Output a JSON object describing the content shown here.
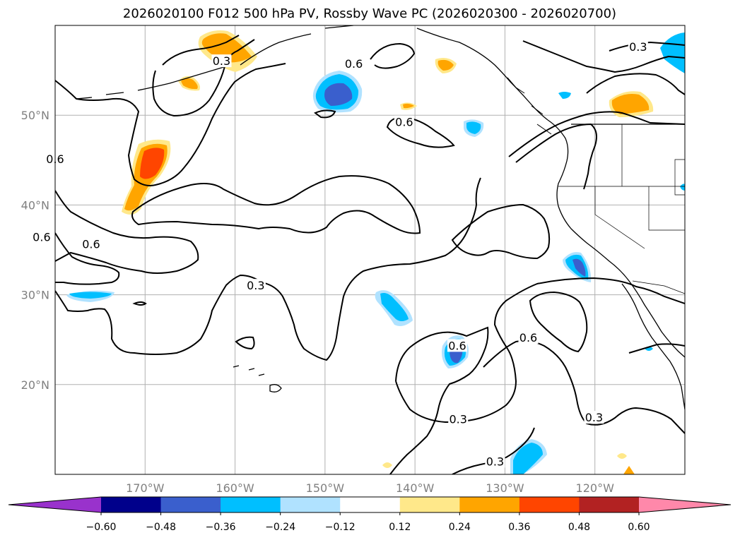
{
  "chart_data": {
    "type": "heatmap",
    "title": "2026020100 F012 500 hPa PV, Rossby Wave PC (2026020300 - 2026020700)",
    "x_ticks": [
      "170°W",
      "160°W",
      "150°W",
      "140°W",
      "130°W",
      "120°W"
    ],
    "x_tick_values": [
      -170,
      -160,
      -150,
      -140,
      -130,
      -120
    ],
    "y_ticks": [
      "50°N",
      "40°N",
      "30°N",
      "20°N"
    ],
    "y_tick_values": [
      50,
      40,
      30,
      20
    ],
    "xlim": [
      -180,
      -110
    ],
    "ylim": [
      10,
      60
    ],
    "grid": true,
    "colorbar": {
      "levels": [
        -0.6,
        -0.48,
        -0.36,
        -0.24,
        -0.12,
        0.12,
        0.24,
        0.36,
        0.48,
        0.6
      ],
      "tick_labels": [
        "−0.60",
        "−0.48",
        "−0.36",
        "−0.24",
        "−0.12",
        "0.12",
        "0.24",
        "0.36",
        "0.48",
        "0.60"
      ],
      "colors": [
        "#9932cc",
        "#00008b",
        "#3a5fcd",
        "#00bfff",
        "#b0e2ff",
        "#ffffff",
        "#ffe88a",
        "#ffa500",
        "#ff4500",
        "#b22222",
        "#ff88aa"
      ],
      "extend": "both"
    },
    "contour_labels": [
      {
        "text": "0.3",
        "lon": -161.5,
        "lat": 55.9
      },
      {
        "text": "0.6",
        "lon": -146.8,
        "lat": 55.6
      },
      {
        "text": "0.3",
        "lon": -115.2,
        "lat": 57.5
      },
      {
        "text": "0.6",
        "lon": -141.2,
        "lat": 49.1
      },
      {
        "text": "0.6",
        "lon": -180.0,
        "lat": 45.0
      },
      {
        "text": "0.6",
        "lon": -181.5,
        "lat": 36.3
      },
      {
        "text": "0.6",
        "lon": -176.0,
        "lat": 35.5
      },
      {
        "text": "0.3",
        "lon": -157.7,
        "lat": 30.9
      },
      {
        "text": "0.6",
        "lon": -135.3,
        "lat": 24.2
      },
      {
        "text": "0.6",
        "lon": -127.4,
        "lat": 25.1
      },
      {
        "text": "0.3",
        "lon": -135.2,
        "lat": 16.0
      },
      {
        "text": "0.3",
        "lon": -120.1,
        "lat": 16.2
      },
      {
        "text": "0.3",
        "lon": -131.1,
        "lat": 11.3
      }
    ],
    "features": [
      {
        "lon": -161,
        "lat": 58,
        "value": 0.3
      },
      {
        "lon": -165.3,
        "lat": 53.6,
        "value": 0.3
      },
      {
        "lon": -170,
        "lat": 44.7,
        "value": 0.42
      },
      {
        "lon": -171.4,
        "lat": 40.3,
        "value": 0.3
      },
      {
        "lon": -140.2,
        "lat": 51,
        "value": 0.18
      },
      {
        "lon": -138.8,
        "lat": 55.6,
        "value": 0.27
      },
      {
        "lon": -115.5,
        "lat": 51.3,
        "value": 0.3
      },
      {
        "lon": -149.4,
        "lat": 52.2,
        "value": -0.4
      },
      {
        "lon": -137,
        "lat": 48.6,
        "value": -0.3
      },
      {
        "lon": -112.5,
        "lat": 57,
        "value": -0.3
      },
      {
        "lon": -122,
        "lat": 32.3,
        "value": -0.4
      },
      {
        "lon": -177,
        "lat": 29.9,
        "value": -0.27
      },
      {
        "lon": -144,
        "lat": 28.7,
        "value": -0.3
      },
      {
        "lon": -135.2,
        "lat": 23.9,
        "value": -0.4
      },
      {
        "lon": -127.2,
        "lat": 12.5,
        "value": -0.3
      },
      {
        "lon": -113.8,
        "lat": 23.9,
        "value": -0.2
      },
      {
        "lon": -114.7,
        "lat": 12.1,
        "value": 0.18
      },
      {
        "lon": -143,
        "lat": 11,
        "value": 0.18
      }
    ]
  }
}
